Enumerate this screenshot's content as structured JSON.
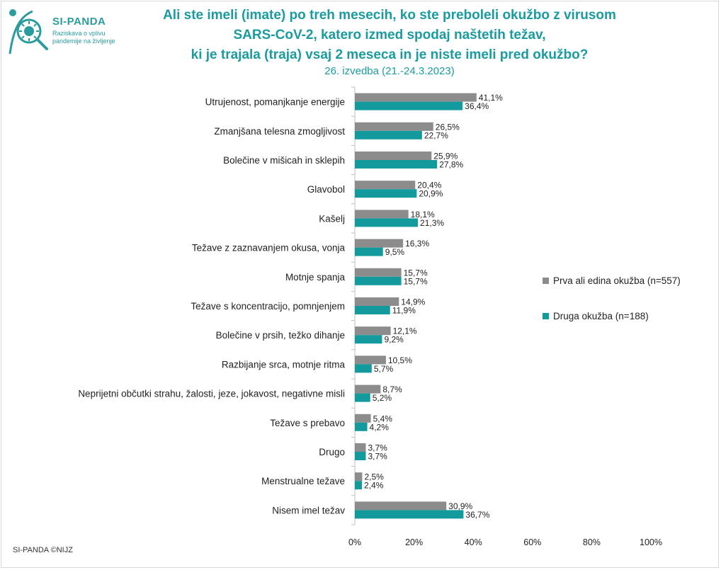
{
  "title_lines": [
    "Ali ste imeli (imate) po treh mesecih, ko ste preboleli okužbo z virusom",
    "SARS-CoV-2, katero izmed spodaj naštetih težav,",
    "ki je trajala (traja) vsaj 2 meseca in je niste imeli pred okužbo?"
  ],
  "subtitle": "26. izvedba (21.-24.3.2023)",
  "logo": {
    "name": "SI-PANDA",
    "tagline": "Raziskava o vplivu pandemije na življenje"
  },
  "footer": "SI-PANDA ©NIJZ",
  "colors": {
    "series1": "#8c8c8c",
    "series2": "#129a9c",
    "accent": "#2a9c9e"
  },
  "chart_data": {
    "type": "bar",
    "orientation": "horizontal",
    "categories": [
      "Utrujenost, pomanjkanje energije",
      "Zmanjšana telesna zmogljivost",
      "Bolečine v mišicah in sklepih",
      "Glavobol",
      "Kašelj",
      "Težave z zaznavanjem okusa, vonja",
      "Motnje spanja",
      "Težave s koncentracijo, pomnjenjem",
      "Bolečine v prsih, težko dihanje",
      "Razbijanje srca, motnje ritma",
      "Neprijetni občutki strahu, žalosti, jeze, jokavost, negativne misli",
      "Težave s prebavo",
      "Drugo",
      "Menstrualne težave",
      "Nisem imel težav"
    ],
    "series": [
      {
        "name": "Prva ali edina okužba (n=557)",
        "values": [
          41.1,
          26.5,
          25.9,
          20.4,
          18.1,
          16.3,
          15.7,
          14.9,
          12.1,
          10.5,
          8.7,
          5.4,
          3.7,
          2.5,
          30.9
        ],
        "labels": [
          "41,1%",
          "26,5%",
          "25,9%",
          "20,4%",
          "18,1%",
          "16,3%",
          "15,7%",
          "14,9%",
          "12,1%",
          "10,5%",
          "8,7%",
          "5,4%",
          "3,7%",
          "2,5%",
          "30,9%"
        ]
      },
      {
        "name": "Druga okužba (n=188)",
        "values": [
          36.4,
          22.7,
          27.8,
          20.9,
          21.3,
          9.5,
          15.7,
          11.9,
          9.2,
          5.7,
          5.2,
          4.2,
          3.7,
          2.4,
          36.7
        ],
        "labels": [
          "36,4%",
          "22,7%",
          "27,8%",
          "20,9%",
          "21,3%",
          "9,5%",
          "15,7%",
          "11,9%",
          "9,2%",
          "5,7%",
          "5,2%",
          "4,2%",
          "3,7%",
          "2,4%",
          "36,7%"
        ]
      }
    ],
    "xlim": [
      0,
      100
    ],
    "xticks": [
      0,
      20,
      40,
      60,
      80,
      100
    ],
    "xtick_labels": [
      "0%",
      "20%",
      "40%",
      "60%",
      "80%",
      "100%"
    ],
    "legend_position": "right",
    "grid": false
  }
}
